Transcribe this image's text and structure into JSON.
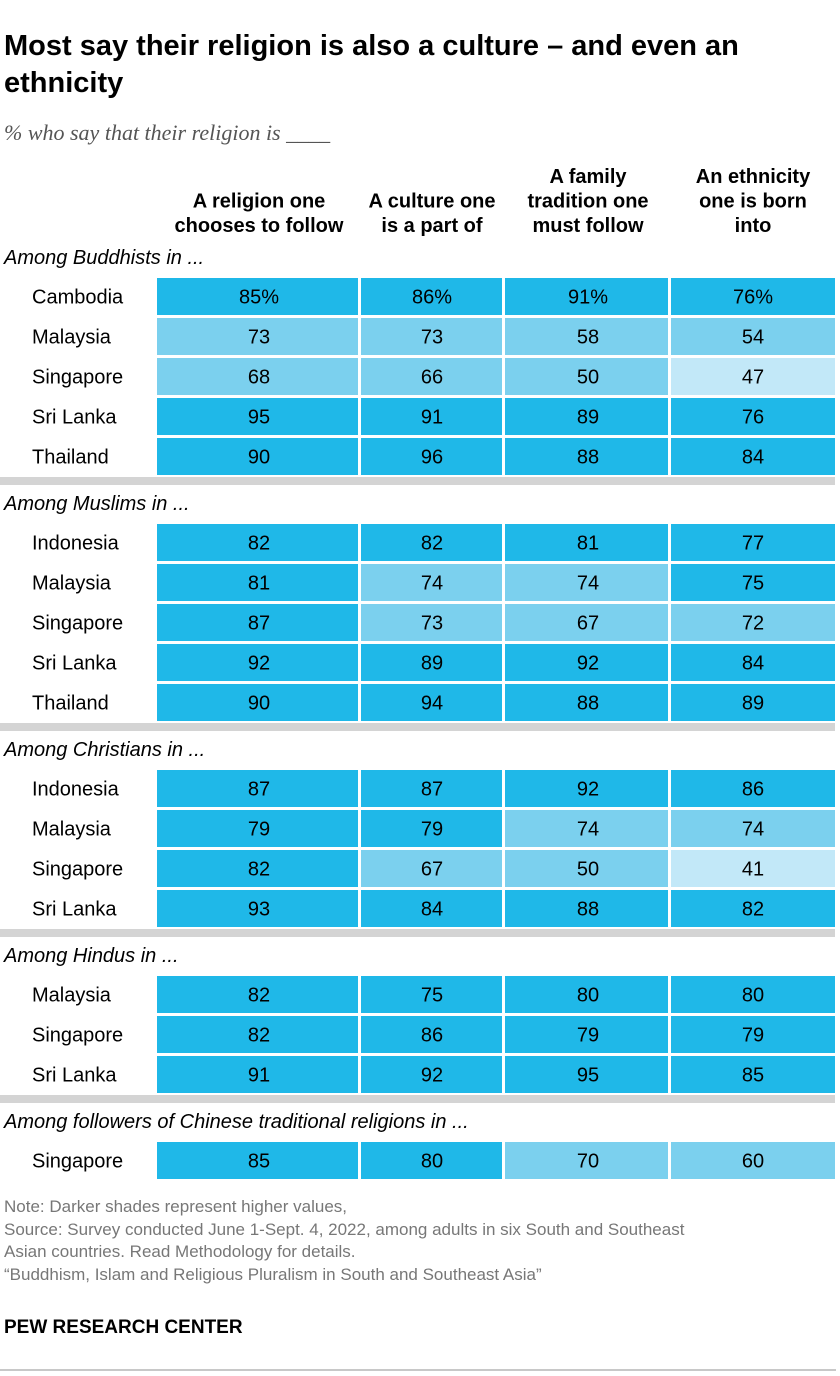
{
  "title": "Most say their religion is also a culture – and even an ethnicity",
  "subtitle": "% who say that their religion is ____",
  "colors": {
    "dark": "#1fb8e8",
    "medium": "#7bd0ee",
    "light": "#c2e8f8",
    "separator": "#d4d4d4"
  },
  "chart_data": {
    "type": "table",
    "columns": [
      [
        "A religion one",
        "chooses to follow"
      ],
      [
        "A culture one",
        "is a part of"
      ],
      [
        "A family",
        "tradition one",
        "must follow"
      ],
      [
        "An ethnicity",
        "one is born",
        "into"
      ]
    ],
    "groups": [
      {
        "label": "Among Buddhists in ...",
        "rows": [
          {
            "country": "Cambodia",
            "values": [
              85,
              86,
              91,
              76
            ],
            "display": [
              "85%",
              "86%",
              "91%",
              "76%"
            ],
            "shades": [
              "dark",
              "dark",
              "dark",
              "dark"
            ]
          },
          {
            "country": "Malaysia",
            "values": [
              73,
              73,
              58,
              54
            ],
            "display": [
              "73",
              "73",
              "58",
              "54"
            ],
            "shades": [
              "medium",
              "medium",
              "medium",
              "medium"
            ]
          },
          {
            "country": "Singapore",
            "values": [
              68,
              66,
              50,
              47
            ],
            "display": [
              "68",
              "66",
              "50",
              "47"
            ],
            "shades": [
              "medium",
              "medium",
              "medium",
              "light"
            ]
          },
          {
            "country": "Sri Lanka",
            "values": [
              95,
              91,
              89,
              76
            ],
            "display": [
              "95",
              "91",
              "89",
              "76"
            ],
            "shades": [
              "dark",
              "dark",
              "dark",
              "dark"
            ]
          },
          {
            "country": "Thailand",
            "values": [
              90,
              96,
              88,
              84
            ],
            "display": [
              "90",
              "96",
              "88",
              "84"
            ],
            "shades": [
              "dark",
              "dark",
              "dark",
              "dark"
            ]
          }
        ]
      },
      {
        "label": "Among Muslims in ...",
        "rows": [
          {
            "country": "Indonesia",
            "values": [
              82,
              82,
              81,
              77
            ],
            "display": [
              "82",
              "82",
              "81",
              "77"
            ],
            "shades": [
              "dark",
              "dark",
              "dark",
              "dark"
            ]
          },
          {
            "country": "Malaysia",
            "values": [
              81,
              74,
              74,
              75
            ],
            "display": [
              "81",
              "74",
              "74",
              "75"
            ],
            "shades": [
              "dark",
              "medium",
              "medium",
              "dark"
            ]
          },
          {
            "country": "Singapore",
            "values": [
              87,
              73,
              67,
              72
            ],
            "display": [
              "87",
              "73",
              "67",
              "72"
            ],
            "shades": [
              "dark",
              "medium",
              "medium",
              "medium"
            ]
          },
          {
            "country": "Sri Lanka",
            "values": [
              92,
              89,
              92,
              84
            ],
            "display": [
              "92",
              "89",
              "92",
              "84"
            ],
            "shades": [
              "dark",
              "dark",
              "dark",
              "dark"
            ]
          },
          {
            "country": "Thailand",
            "values": [
              90,
              94,
              88,
              89
            ],
            "display": [
              "90",
              "94",
              "88",
              "89"
            ],
            "shades": [
              "dark",
              "dark",
              "dark",
              "dark"
            ]
          }
        ]
      },
      {
        "label": "Among Christians in ...",
        "rows": [
          {
            "country": "Indonesia",
            "values": [
              87,
              87,
              92,
              86
            ],
            "display": [
              "87",
              "87",
              "92",
              "86"
            ],
            "shades": [
              "dark",
              "dark",
              "dark",
              "dark"
            ]
          },
          {
            "country": "Malaysia",
            "values": [
              79,
              79,
              74,
              74
            ],
            "display": [
              "79",
              "79",
              "74",
              "74"
            ],
            "shades": [
              "dark",
              "dark",
              "medium",
              "medium"
            ]
          },
          {
            "country": "Singapore",
            "values": [
              82,
              67,
              50,
              41
            ],
            "display": [
              "82",
              "67",
              "50",
              "41"
            ],
            "shades": [
              "dark",
              "medium",
              "medium",
              "light"
            ]
          },
          {
            "country": "Sri Lanka",
            "values": [
              93,
              84,
              88,
              82
            ],
            "display": [
              "93",
              "84",
              "88",
              "82"
            ],
            "shades": [
              "dark",
              "dark",
              "dark",
              "dark"
            ]
          }
        ]
      },
      {
        "label": "Among Hindus in ...",
        "rows": [
          {
            "country": "Malaysia",
            "values": [
              82,
              75,
              80,
              80
            ],
            "display": [
              "82",
              "75",
              "80",
              "80"
            ],
            "shades": [
              "dark",
              "dark",
              "dark",
              "dark"
            ]
          },
          {
            "country": "Singapore",
            "values": [
              82,
              86,
              79,
              79
            ],
            "display": [
              "82",
              "86",
              "79",
              "79"
            ],
            "shades": [
              "dark",
              "dark",
              "dark",
              "dark"
            ]
          },
          {
            "country": "Sri Lanka",
            "values": [
              91,
              92,
              95,
              85
            ],
            "display": [
              "91",
              "92",
              "95",
              "85"
            ],
            "shades": [
              "dark",
              "dark",
              "dark",
              "dark"
            ]
          }
        ]
      },
      {
        "label": "Among followers of Chinese traditional religions in ...",
        "rows": [
          {
            "country": "Singapore",
            "values": [
              85,
              80,
              70,
              60
            ],
            "display": [
              "85",
              "80",
              "70",
              "60"
            ],
            "shades": [
              "dark",
              "dark",
              "medium",
              "medium"
            ]
          }
        ]
      }
    ]
  },
  "notes": {
    "note": "Note: Darker shades represent higher values,",
    "source_line1": "Source: Survey conducted June 1-Sept. 4, 2022, among adults in six South and Southeast",
    "source_line2": "Asian countries. Read Methodology for details.",
    "report": "“Buddhism, Islam and Religious Pluralism in South and Southeast Asia”"
  },
  "branding": "PEW RESEARCH CENTER"
}
